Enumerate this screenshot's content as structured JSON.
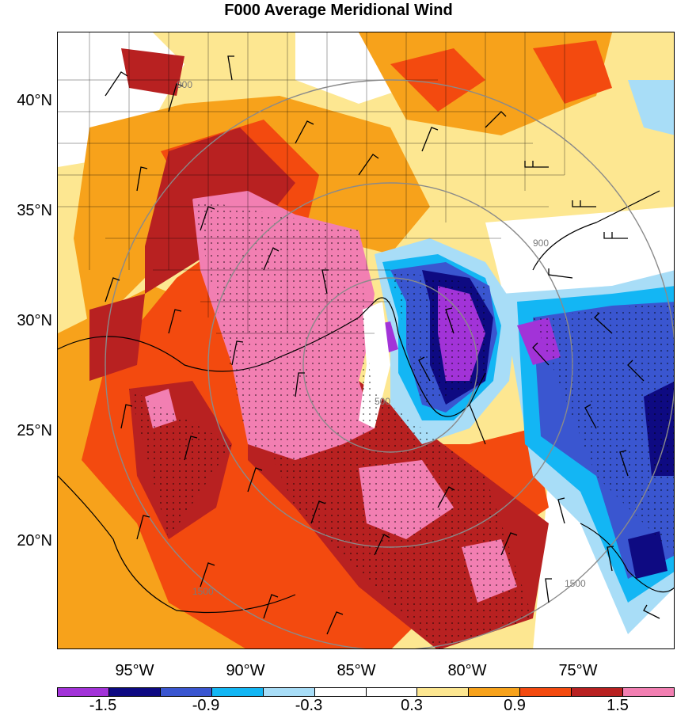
{
  "title": "F000 Average Meridional Wind",
  "lat_labels": [
    "40°N",
    "35°N",
    "30°N",
    "25°N",
    "20°N"
  ],
  "lon_labels": [
    "95°W",
    "90°W",
    "85°W",
    "80°W",
    "75°W"
  ],
  "colorbar": {
    "colors": [
      "#a233d8",
      "#0e0a82",
      "#3a56d0",
      "#13b6f4",
      "#a8ddf7",
      "#ffffff",
      "#ffffff",
      "#fde791",
      "#f7a21b",
      "#f34a0f",
      "#b82121",
      "#f27fb2"
    ],
    "labels": [
      "-1.5",
      "-0.9",
      "-0.3",
      "0.3",
      "0.9",
      "1.5"
    ]
  },
  "range_ring_labels": [
    "900",
    "1500",
    "500",
    "900",
    "1500"
  ]
}
